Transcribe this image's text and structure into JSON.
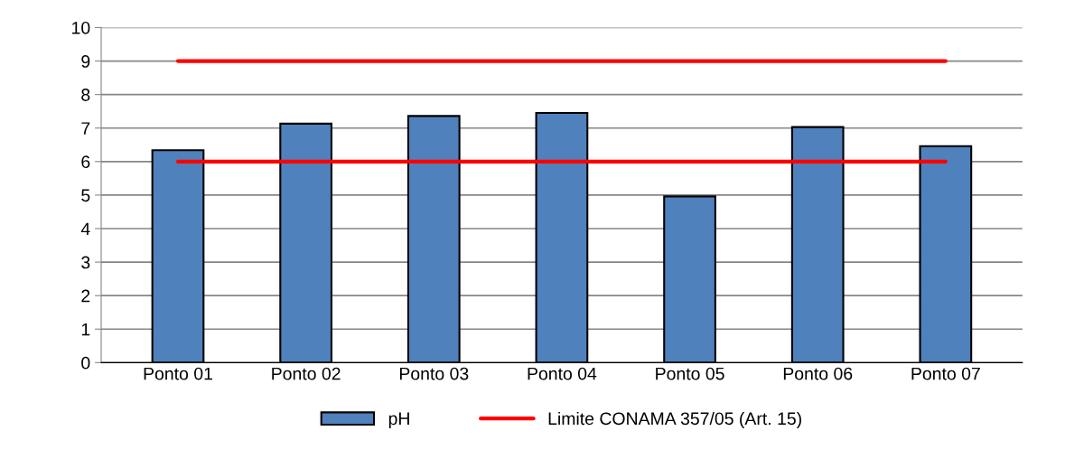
{
  "chart_data": {
    "type": "bar",
    "categories": [
      "Ponto 01",
      "Ponto 02",
      "Ponto 03",
      "Ponto 04",
      "Ponto 05",
      "Ponto 06",
      "Ponto 07"
    ],
    "series": [
      {
        "name": "pH",
        "color": "#4f81bd",
        "values": [
          6.34,
          7.13,
          7.36,
          7.45,
          4.96,
          7.03,
          6.46
        ]
      },
      {
        "name": "Limite CONAMA 357/05 (Art. 15)",
        "type": "line",
        "color": "#ff0000",
        "values": [
          6,
          6,
          6,
          6,
          6,
          6,
          6
        ]
      },
      {
        "type": "line",
        "color": "#ff0000",
        "values": [
          9,
          9,
          9,
          9,
          9,
          9,
          9
        ]
      }
    ],
    "ylim": [
      0,
      10
    ],
    "yticks": [
      0,
      1,
      2,
      3,
      4,
      5,
      6,
      7,
      8,
      9,
      10
    ],
    "grid": "y",
    "legend": "bottom"
  }
}
